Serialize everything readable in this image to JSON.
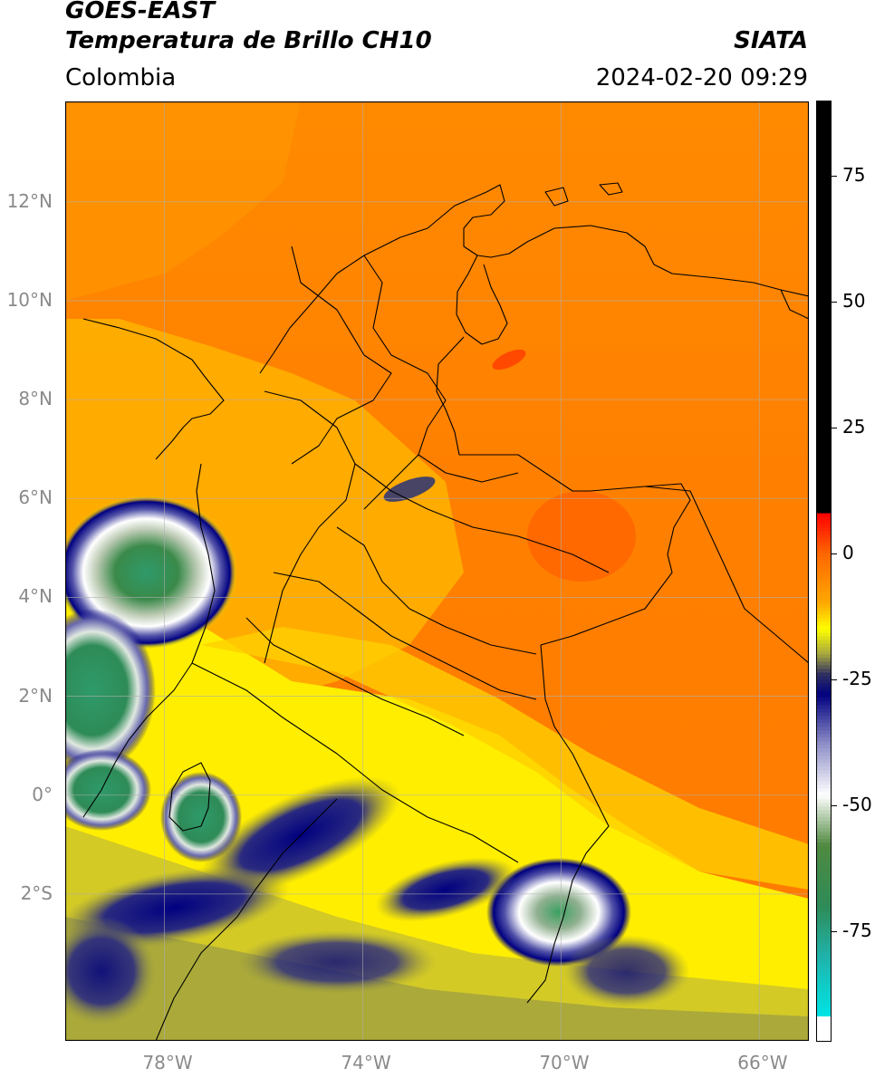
{
  "header": {
    "satellite": "GOES-EAST",
    "product": "Temperatura de Brillo CH10",
    "region": "Colombia",
    "source": "SIATA",
    "datetime": "2024-02-20 09:29"
  },
  "map": {
    "lat_range": [
      -4.97,
      14.03
    ],
    "lon_range": [
      -80.0,
      -65.0
    ],
    "lat_ticks": [
      {
        "value": 12,
        "label": "12°N"
      },
      {
        "value": 10,
        "label": "10°N"
      },
      {
        "value": 8,
        "label": "8°N"
      },
      {
        "value": 6,
        "label": "6°N"
      },
      {
        "value": 4,
        "label": "4°N"
      },
      {
        "value": 2,
        "label": "2°N"
      },
      {
        "value": 0,
        "label": "0°"
      },
      {
        "value": -2,
        "label": "2°S"
      }
    ],
    "lon_ticks": [
      {
        "value": -78,
        "label": "78°W"
      },
      {
        "value": -74,
        "label": "74°W"
      },
      {
        "value": -70,
        "label": "70°W"
      },
      {
        "value": -66,
        "label": "66°W"
      }
    ],
    "grid": true,
    "background_color": "#ff8000"
  },
  "colorbar": {
    "unit_range": [
      -97,
      90
    ],
    "ticks": [
      {
        "value": 75,
        "label": "75"
      },
      {
        "value": 50,
        "label": "50"
      },
      {
        "value": 25,
        "label": "25"
      },
      {
        "value": 0,
        "label": "0"
      },
      {
        "value": -25,
        "label": "-25"
      },
      {
        "value": -50,
        "label": "-50"
      },
      {
        "value": -75,
        "label": "-75"
      }
    ],
    "stops": [
      {
        "value": 90,
        "color": "#000000"
      },
      {
        "value": 8,
        "color": "#000000"
      },
      {
        "value": 7.9,
        "color": "#ff0000"
      },
      {
        "value": 0,
        "color": "#ff6600"
      },
      {
        "value": -10,
        "color": "#ffaa00"
      },
      {
        "value": -15,
        "color": "#ffff00"
      },
      {
        "value": -20,
        "color": "#a6a640"
      },
      {
        "value": -24,
        "color": "#303060"
      },
      {
        "value": -28,
        "color": "#000080"
      },
      {
        "value": -38,
        "color": "#9090c8"
      },
      {
        "value": -48,
        "color": "#ffffff"
      },
      {
        "value": -58,
        "color": "#508a40"
      },
      {
        "value": -70,
        "color": "#2e8b57"
      },
      {
        "value": -80,
        "color": "#20b2aa"
      },
      {
        "value": -92,
        "color": "#00e5e5"
      },
      {
        "value": -92.1,
        "color": "#ffffff"
      },
      {
        "value": -97,
        "color": "#ffffff"
      }
    ]
  }
}
